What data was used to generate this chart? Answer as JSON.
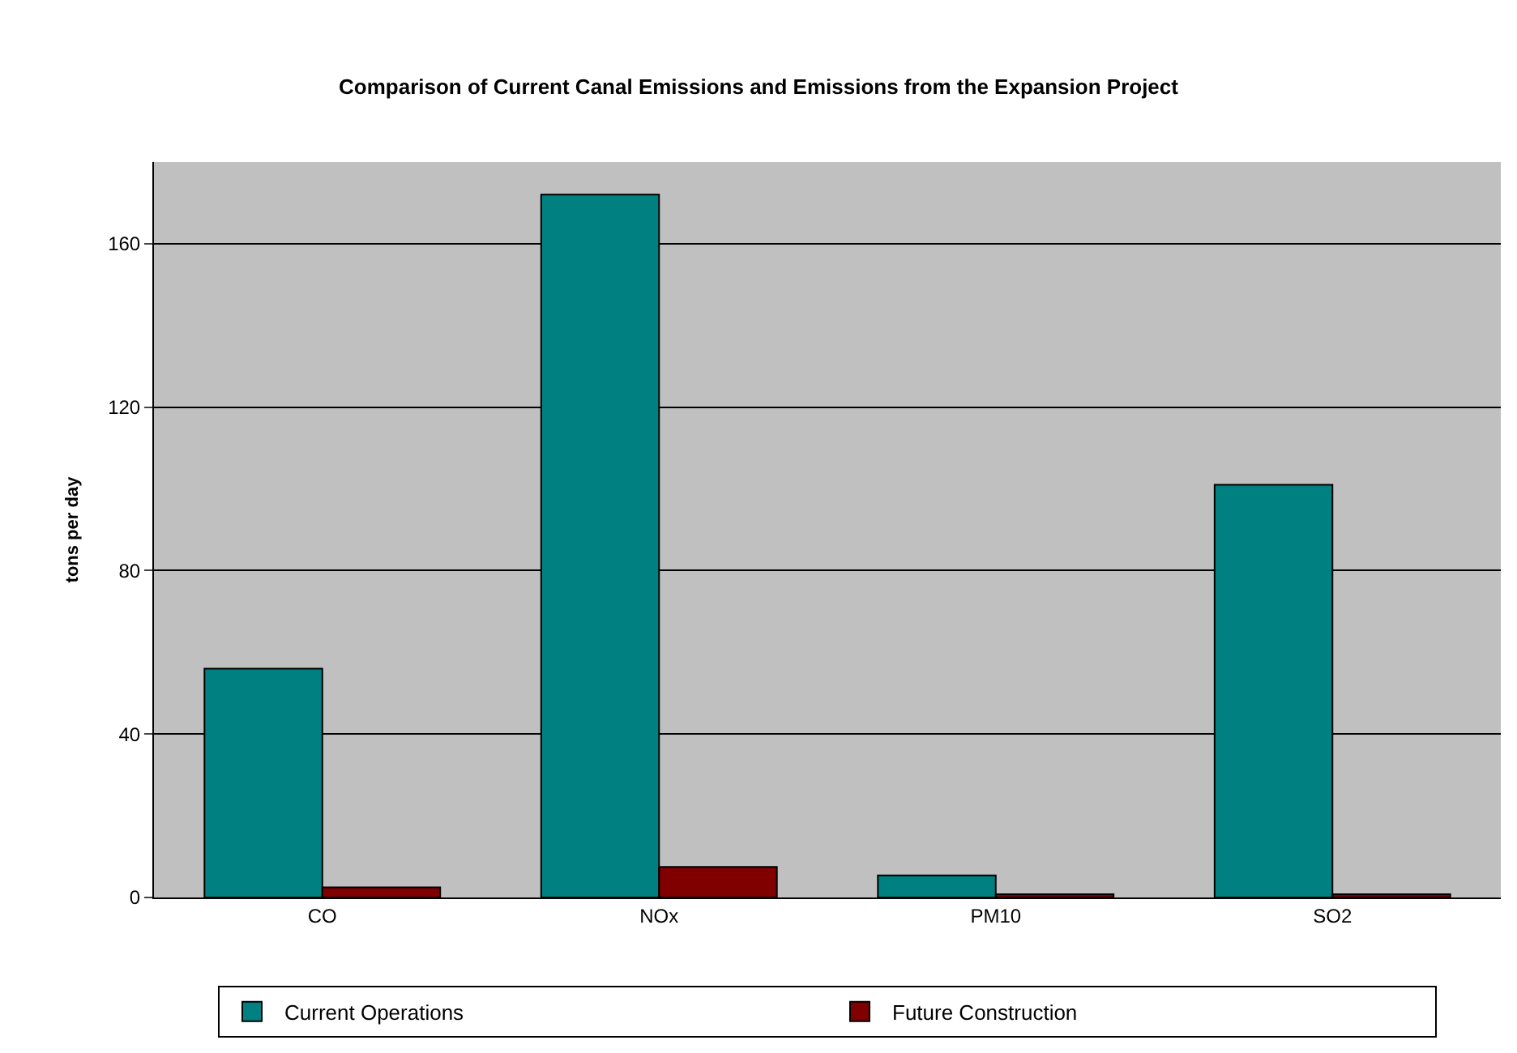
{
  "chart_data": {
    "type": "bar",
    "title": "Comparison of Current Canal Emissions and Emissions from the Expansion Project",
    "ylabel": "tons per day",
    "categories": [
      "CO",
      "NOx",
      "PM10",
      "SO2"
    ],
    "series": [
      {
        "name": "Current Operations",
        "color": "#008080",
        "values": [
          56,
          172,
          5.4,
          101
        ]
      },
      {
        "name": "Future Construction",
        "color": "#800000",
        "values": [
          2.5,
          7.5,
          0.8,
          0.8
        ]
      }
    ],
    "ylim": [
      0,
      180
    ],
    "yticks": [
      0,
      40,
      80,
      120,
      160
    ],
    "grid": "y",
    "legend": "bottom"
  }
}
